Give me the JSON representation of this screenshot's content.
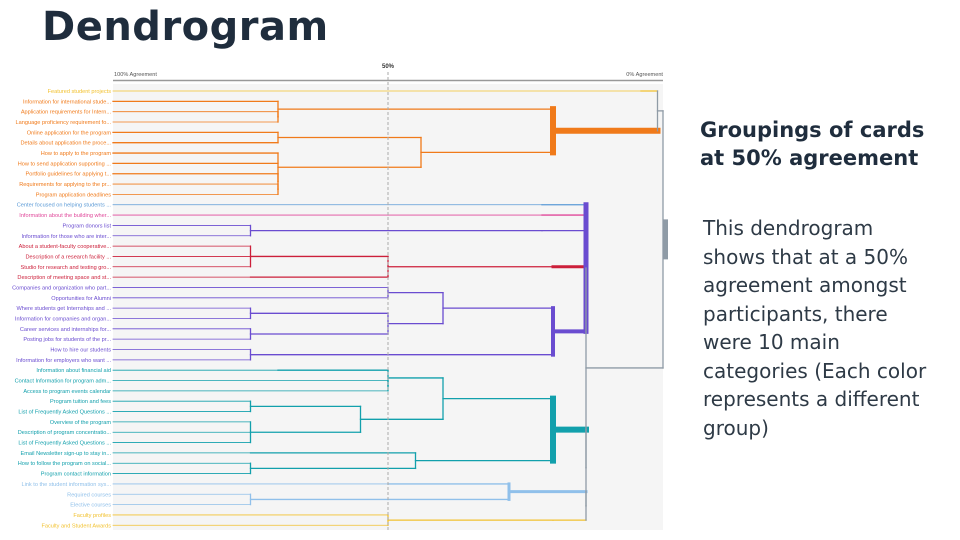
{
  "slide": {
    "title": "Dendrogram",
    "side_heading": "Groupings of cards at 50% agreement",
    "side_body": "This dendrogram shows that at a 50% agreement amongst participants, there were 10 main categories (Each color represents a different group)"
  },
  "chart_data": {
    "type": "dendrogram",
    "x_axis": {
      "left_label": "100% Agreement",
      "mid_label": "50%",
      "right_label": "0% Agreement",
      "range": [
        100,
        0
      ]
    },
    "cut_line": 50,
    "num_groups": 10,
    "leaves": [
      "Featured student projects",
      "Information for international stude...",
      "Application requirements for Intern...",
      "Language proficiency requirement fo...",
      "Online application for the program",
      "Details about application the proce...",
      "How to apply to the program",
      "How to send application supporting ...",
      "Portfolio guidelines for applying t...",
      "Requirements for applying to the pr...",
      "Program application deadlines",
      "Center focused on helping students ...",
      "Information about the building wher...",
      "Program donors list",
      "Information for those who are inter...",
      "About a student-faculty cooperative...",
      "Description of a research facility ...",
      "Studio for research and testing gro...",
      "Description of meeting space and st...",
      "Companies and organization who part...",
      "Opportunities for Alumni",
      "Where students get Internships and ...",
      "Information for companies and organ...",
      "Career services and internships for...",
      "Posting jobs for students of the pr...",
      "How to hire our students",
      "Information for employers who want ...",
      "Information about financial aid",
      "Contact Information for program adm...",
      "Access to program events calendar",
      "Program tuition and fees",
      "List of Frequently Asked Questions ...",
      "Overview of the program",
      "Description of program concentratio...",
      "List of Frequently Asked Questions ...",
      "Email Newsletter sign-up to stay in...",
      "How to follow the program on social...",
      "Program contact information",
      "Link to the student information sys...",
      "Required courses",
      "Elective courses",
      "Faculty profiles",
      "Faculty and Student Awards"
    ],
    "colors": {
      "yellow": "#f2c12e",
      "orange": "#f07a1a",
      "blue": "#5b9ad6",
      "pink": "#e0489a",
      "purple": "#6a4cd0",
      "red": "#cc1f3a",
      "teal": "#12a0ac",
      "lightblue": "#90c0ea",
      "trunk": "#8f9ba6",
      "cutline": "#aaaaaa"
    },
    "groups": [
      {
        "name": "yellow-a",
        "color": "yellow",
        "leaves": [
          0
        ]
      },
      {
        "name": "orange",
        "color": "orange",
        "leaves": [
          1,
          2,
          3,
          4,
          5,
          6,
          7,
          8,
          9,
          10
        ]
      },
      {
        "name": "blue",
        "color": "blue",
        "leaves": [
          11
        ]
      },
      {
        "name": "pink",
        "color": "pink",
        "leaves": [
          12
        ]
      },
      {
        "name": "purple-a",
        "color": "purple",
        "leaves": [
          13,
          14
        ]
      },
      {
        "name": "red",
        "color": "red",
        "leaves": [
          15,
          16,
          17,
          18
        ]
      },
      {
        "name": "purple-b",
        "color": "purple",
        "leaves": [
          19,
          20,
          21,
          22,
          23,
          24,
          25,
          26
        ]
      },
      {
        "name": "teal",
        "color": "teal",
        "leaves": [
          27,
          28,
          29,
          30,
          31,
          32,
          33,
          34,
          35,
          36,
          37
        ]
      },
      {
        "name": "lightblue",
        "color": "lightblue",
        "leaves": [
          38,
          39,
          40
        ]
      },
      {
        "name": "yellow-b",
        "color": "yellow",
        "leaves": [
          41,
          42
        ]
      }
    ],
    "tree": {
      "h": 0,
      "children": [
        {
          "h": 1,
          "children": [
            {
              "h": 4,
              "color": "yellow",
              "children": [
                {
                  "leaf": 0
                }
              ]
            },
            {
              "h": 20,
              "color": "orange",
              "w": 6,
              "children": [
                {
                  "h": 37,
                  "color": "orange",
                  "children": [
                    {
                      "h": 70,
                      "color": "orange",
                      "children": [
                        {
                          "h": 100,
                          "color": "orange",
                          "children": [
                            {
                              "leaf": 1
                            }
                          ]
                        },
                        {
                          "h": 70,
                          "color": "orange",
                          "children": [
                            {
                              "leaf": 2
                            },
                            {
                              "leaf": 3
                            }
                          ]
                        }
                      ]
                    }
                  ]
                },
                {
                  "h": 44,
                  "color": "orange",
                  "children": [
                    {
                      "h": 70,
                      "color": "orange",
                      "children": [
                        {
                          "h": 100,
                          "color": "orange",
                          "children": [
                            {
                              "leaf": 4
                            }
                          ]
                        },
                        {
                          "h": 100,
                          "color": "orange",
                          "children": [
                            {
                              "leaf": 5
                            }
                          ]
                        }
                      ]
                    },
                    {
                      "h": 70,
                      "color": "orange",
                      "children": [
                        {
                          "h": 100,
                          "color": "orange",
                          "children": [
                            {
                              "leaf": 6
                            }
                          ]
                        },
                        {
                          "h": 100,
                          "color": "orange",
                          "children": [
                            {
                              "leaf": 7
                            }
                          ]
                        },
                        {
                          "h": 70,
                          "color": "orange",
                          "children": [
                            {
                              "h": 100,
                              "color": "orange",
                              "children": [
                                {
                                  "leaf": 8
                                }
                              ]
                            },
                            {
                              "h": 70,
                              "color": "orange",
                              "children": [
                                {
                                  "leaf": 9
                                },
                                {
                                  "leaf": 10
                                }
                              ]
                            }
                          ]
                        }
                      ]
                    }
                  ]
                }
              ]
            }
          ]
        },
        {
          "h": 14,
          "children": [
            {
              "h": 14,
              "color": "purple",
              "w": 5,
              "children": [
                {
                  "h": 22,
                  "color": "blue",
                  "children": [
                    {
                      "leaf": 11
                    }
                  ]
                },
                {
                  "h": 22,
                  "color": "pink",
                  "children": [
                    {
                      "leaf": 12
                    }
                  ]
                },
                {
                  "h": 22,
                  "color": "purple",
                  "children": [
                    {
                      "h": 75,
                      "color": "purple",
                      "children": [
                        {
                          "leaf": 13
                        },
                        {
                          "leaf": 14
                        }
                      ]
                    }
                  ]
                },
                {
                  "h": 20,
                  "color": "red",
                  "w": 3,
                  "children": [
                    {
                      "h": 50,
                      "color": "red",
                      "children": [
                        {
                          "h": 75,
                          "color": "red",
                          "children": [
                            {
                              "leaf": 15
                            },
                            {
                              "leaf": 16
                            },
                            {
                              "leaf": 17
                            }
                          ]
                        },
                        {
                          "h": 75,
                          "color": "red",
                          "children": [
                            {
                              "leaf": 18
                            }
                          ]
                        }
                      ]
                    }
                  ]
                },
                {
                  "h": 20,
                  "color": "purple",
                  "w": 4,
                  "children": [
                    {
                      "h": 40,
                      "color": "purple",
                      "children": [
                        {
                          "h": 50,
                          "color": "purple",
                          "children": [
                            {
                              "leaf": 19
                            },
                            {
                              "leaf": 20
                            }
                          ]
                        },
                        {
                          "h": 50,
                          "color": "purple",
                          "children": [
                            {
                              "h": 75,
                              "color": "purple",
                              "children": [
                                {
                                  "leaf": 21
                                },
                                {
                                  "leaf": 22
                                }
                              ]
                            },
                            {
                              "h": 75,
                              "color": "purple",
                              "children": [
                                {
                                  "leaf": 23
                                },
                                {
                                  "leaf": 24
                                }
                              ]
                            }
                          ]
                        }
                      ]
                    },
                    {
                      "h": 50,
                      "color": "purple",
                      "children": [
                        {
                          "h": 75,
                          "color": "purple",
                          "children": [
                            {
                              "leaf": 25
                            },
                            {
                              "leaf": 26
                            }
                          ]
                        }
                      ]
                    }
                  ]
                }
              ]
            },
            {
              "h": 14,
              "children": [
                {
                  "h": 20,
                  "color": "teal",
                  "w": 6,
                  "children": [
                    {
                      "h": 40,
                      "color": "teal",
                      "children": [
                        {
                          "h": 50,
                          "color": "teal",
                          "children": [
                            {
                              "h": 70,
                              "color": "teal",
                              "children": [
                                {
                                  "leaf": 27
                                }
                              ]
                            },
                            {
                              "h": 50,
                              "color": "teal",
                              "children": [
                                {
                                  "leaf": 28
                                },
                                {
                                  "leaf": 29
                                }
                              ]
                            }
                          ]
                        },
                        {
                          "h": 55,
                          "color": "teal",
                          "children": [
                            {
                              "h": 75,
                              "color": "teal",
                              "children": [
                                {
                                  "leaf": 30
                                },
                                {
                                  "leaf": 31
                                }
                              ]
                            },
                            {
                              "h": 75,
                              "color": "teal",
                              "children": [
                                {
                                  "leaf": 32
                                },
                                {
                                  "leaf": 33
                                },
                                {
                                  "leaf": 34
                                }
                              ]
                            }
                          ]
                        }
                      ]
                    },
                    {
                      "h": 45,
                      "color": "teal",
                      "children": [
                        {
                          "h": 75,
                          "color": "teal",
                          "children": [
                            {
                              "leaf": 35
                            }
                          ]
                        },
                        {
                          "h": 75,
                          "color": "teal",
                          "children": [
                            {
                              "leaf": 36
                            },
                            {
                              "leaf": 37
                            }
                          ]
                        }
                      ]
                    }
                  ]
                },
                {
                  "h": 14,
                  "children": [
                    {
                      "h": 28,
                      "color": "lightblue",
                      "w": 3,
                      "children": [
                        {
                          "h": 50,
                          "color": "lightblue",
                          "children": [
                            {
                              "leaf": 38
                            }
                          ]
                        },
                        {
                          "h": 50,
                          "color": "lightblue",
                          "children": [
                            {
                              "h": 75,
                              "color": "lightblue",
                              "children": [
                                {
                                  "leaf": 39
                                },
                                {
                                  "leaf": 40
                                }
                              ]
                            }
                          ]
                        }
                      ]
                    },
                    {
                      "h": 20,
                      "color": "yellow",
                      "children": [
                        {
                          "h": 50,
                          "color": "yellow",
                          "children": [
                            {
                              "leaf": 41
                            },
                            {
                              "leaf": 42
                            }
                          ]
                        }
                      ]
                    }
                  ]
                }
              ]
            }
          ]
        }
      ]
    }
  }
}
